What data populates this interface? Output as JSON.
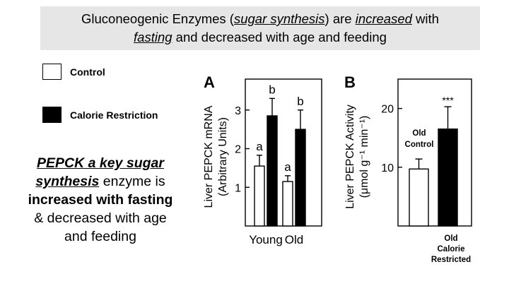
{
  "banner": {
    "p1": "Gluconeogenic Enzymes (",
    "p2": "sugar synthesis",
    "p3": ") are ",
    "p4": "increased",
    "p5": " with",
    "p6": "fasting",
    "p7": " and decreased with age and feeding"
  },
  "legend": {
    "control": "Control",
    "cr": "Calorie Restriction"
  },
  "side_text": {
    "l1": "PEPCK a key sugar",
    "l2a": "synthesis",
    "l2b": " enzyme is",
    "l3": "increased with fasting",
    "l4": "& decreased with age",
    "l5": "and feeding"
  },
  "chart_data": [
    {
      "panel": "A",
      "type": "bar",
      "ylabel_line1": "Liver PEPCK mRNA",
      "ylabel_line2": "(Arbitrary Units)",
      "yticks": [
        1,
        2,
        3
      ],
      "ylim": [
        0,
        3.8
      ],
      "categories": [
        "Young",
        "Old"
      ],
      "series": [
        {
          "name": "Control",
          "color": "#ffffff",
          "values": [
            1.55,
            1.15
          ],
          "errors": [
            0.28,
            0.15
          ],
          "letters": [
            "a",
            "a"
          ]
        },
        {
          "name": "Calorie Restriction",
          "color": "#000000",
          "values": [
            2.85,
            2.5
          ],
          "errors": [
            0.45,
            0.5
          ],
          "letters": [
            "b",
            "b"
          ]
        }
      ]
    },
    {
      "panel": "B",
      "type": "bar",
      "ylabel_line1": "Liver PEPCK Activity",
      "ylabel_line2": "(μmol g⁻¹ min⁻¹)",
      "yticks": [
        10,
        20
      ],
      "ylim": [
        0,
        25
      ],
      "categories": [
        "Old Control",
        "Old Calorie Restricted"
      ],
      "values": [
        9.7,
        16.5
      ],
      "errors": [
        1.7,
        3.8
      ],
      "colors": [
        "#ffffff",
        "#000000"
      ],
      "annotation": "***",
      "inner_label": [
        "Old",
        "Control"
      ],
      "below_label": [
        "Old",
        "Calorie",
        "Restricted"
      ]
    }
  ]
}
